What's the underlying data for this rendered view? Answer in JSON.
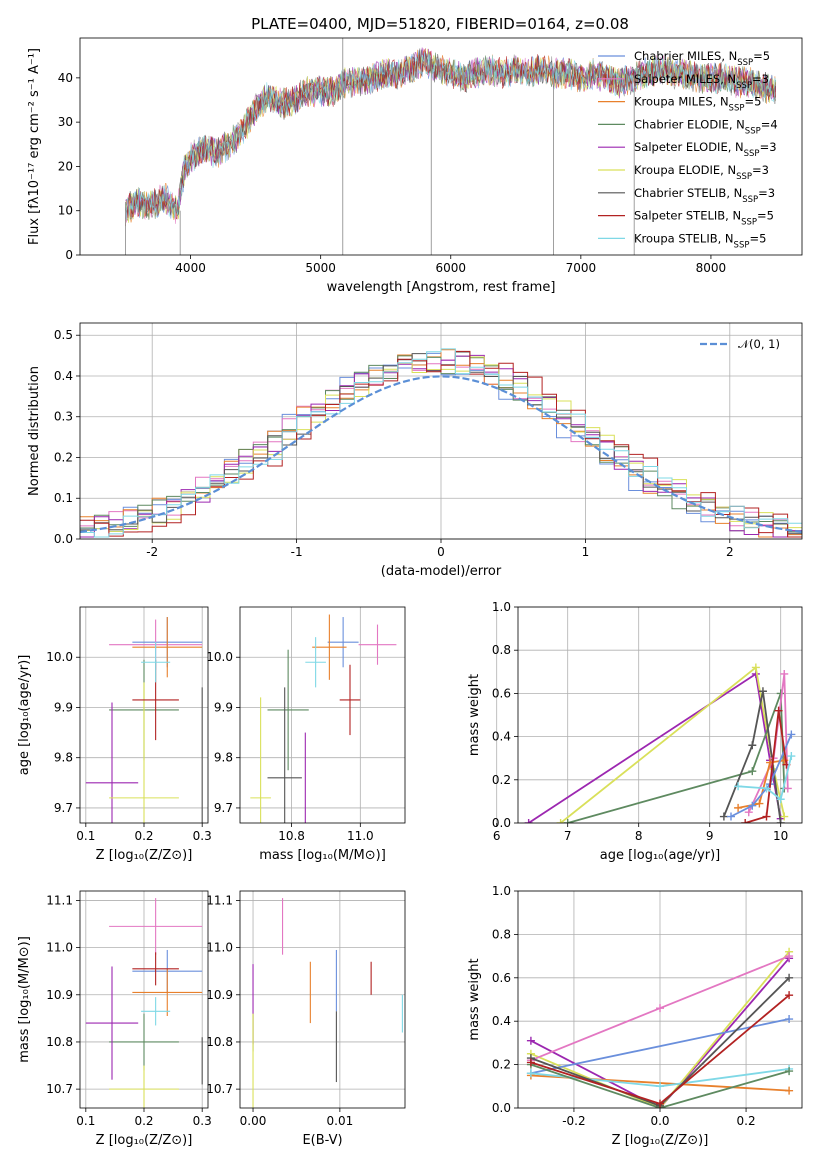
{
  "figure": {
    "title": "PLATE=0400, MJD=51820, FIBERID=0164, z=0.08"
  },
  "chart_data": [
    {
      "type": "line",
      "xlabel": "wavelength [Angstrom, rest frame]",
      "ylabel": "Flux [fλ10⁻¹⁷ erg cm⁻² s⁻¹ A⁻¹]",
      "xlim": [
        3150,
        8700
      ],
      "ylim": [
        0,
        49
      ],
      "xticks": [
        4000,
        5000,
        6000,
        7000,
        8000
      ],
      "yticks": [
        0,
        10,
        20,
        30,
        40
      ],
      "legend_position": "right",
      "grid": false,
      "spectrum_envelope": {
        "x": [
          3500,
          3600,
          3700,
          3800,
          3900,
          3950,
          4000,
          4100,
          4200,
          4300,
          4400,
          4500,
          4600,
          4700,
          4800,
          4900,
          5000,
          5100,
          5200,
          5300,
          5400,
          5500,
          5600,
          5700,
          5800,
          5900,
          6000,
          6100,
          6200,
          6300,
          6400,
          6500,
          6600,
          6700,
          6800,
          6900,
          7000,
          7100,
          7200,
          7300,
          7400,
          7500,
          7600,
          7700,
          7800,
          7900,
          8000,
          8100,
          8200,
          8300,
          8400,
          8500
        ],
        "y": [
          10,
          12,
          11,
          13,
          10,
          19,
          22,
          24,
          23,
          25,
          28,
          33,
          36,
          34,
          35,
          37,
          37,
          37,
          39,
          39,
          40,
          41,
          41,
          42,
          44,
          42,
          41,
          40,
          41,
          42,
          41,
          42,
          41,
          42,
          41,
          41,
          40,
          41,
          40,
          39,
          40,
          41,
          42,
          41,
          41,
          40,
          40,
          40,
          39,
          39,
          38,
          37
        ]
      },
      "series": [
        {
          "name": "Chabrier MILES, N",
          "suffix": "=5",
          "color": "#6a8fdc"
        },
        {
          "name": "Salpeter MILES, N",
          "suffix": "=3",
          "color": "#e377c2"
        },
        {
          "name": "Kroupa MILES, N",
          "suffix": "=5",
          "color": "#e8802c"
        },
        {
          "name": "Chabrier ELODIE, N",
          "suffix": "=4",
          "color": "#5e8a60"
        },
        {
          "name": "Salpeter ELODIE, N",
          "suffix": "=3",
          "color": "#9c27b0"
        },
        {
          "name": "Kroupa ELODIE, N",
          "suffix": "=3",
          "color": "#d9e05a"
        },
        {
          "name": "Chabrier STELIB, N",
          "suffix": "=3",
          "color": "#555555"
        },
        {
          "name": "Salpeter STELIB, N",
          "suffix": "=5",
          "color": "#b22222"
        },
        {
          "name": "Kroupa STELIB, N",
          "suffix": "=5",
          "color": "#7fd8e6"
        }
      ],
      "legend_subscript": "SSP",
      "data_line_color": "#888888"
    },
    {
      "type": "histogram",
      "xlabel": "(data-model)/error",
      "ylabel": "Normed distribution",
      "xlim": [
        -2.5,
        2.5
      ],
      "ylim": [
        0,
        0.53
      ],
      "xticks": [
        -2,
        -1,
        0,
        1,
        2
      ],
      "yticks": [
        0.0,
        0.1,
        0.2,
        0.3,
        0.4,
        0.5
      ],
      "grid": true,
      "bin_width": 0.1,
      "bin_start": -2.5,
      "reference_curve": {
        "name": "𝒩(0, 1)",
        "color": "#5b8fd6",
        "style": "dashed"
      },
      "histogram_colors": [
        "#6a8fdc",
        "#e377c2",
        "#e8802c",
        "#5e8a60",
        "#9c27b0",
        "#d9e05a",
        "#555555",
        "#b22222",
        "#7fd8e6"
      ]
    },
    {
      "type": "scatter",
      "xlabel": "Z [log₁₀(Z/Z⊙)]",
      "ylabel": "age  [log₁₀(age/yr)]",
      "xlim": [
        0.09,
        0.31
      ],
      "ylim": [
        9.67,
        10.1
      ],
      "xticks": [
        0.1,
        0.2,
        0.3
      ],
      "yticks": [
        9.7,
        9.8,
        9.9,
        10.0
      ],
      "grid": true,
      "points": [
        {
          "x": 0.24,
          "y": 10.03,
          "xerr": 0.06,
          "yerr": 0.05,
          "color": "#6a8fdc"
        },
        {
          "x": 0.22,
          "y": 10.025,
          "xerr": 0.08,
          "yerr": 0.05,
          "color": "#e377c2"
        },
        {
          "x": 0.24,
          "y": 10.02,
          "xerr": 0.06,
          "yerr": 0.06,
          "color": "#e8802c"
        },
        {
          "x": 0.2,
          "y": 9.895,
          "xerr": 0.06,
          "yerr": 0.1,
          "color": "#5e8a60"
        },
        {
          "x": 0.145,
          "y": 9.75,
          "xerr": 0.045,
          "yerr": 0.16,
          "color": "#9c27b0"
        },
        {
          "x": 0.2,
          "y": 9.72,
          "xerr": 0.06,
          "yerr": 0.23,
          "color": "#d9e05a"
        },
        {
          "x": 0.3,
          "y": 9.76,
          "xerr": 0.0,
          "yerr": 0.18,
          "color": "#555555"
        },
        {
          "x": 0.22,
          "y": 9.915,
          "xerr": 0.04,
          "yerr": 0.08,
          "color": "#b22222"
        },
        {
          "x": 0.22,
          "y": 9.99,
          "xerr": 0.025,
          "yerr": 0.04,
          "color": "#7fd8e6"
        }
      ]
    },
    {
      "type": "scatter",
      "xlabel": "mass [log₁₀(M/M⊙)]",
      "ylabel": "",
      "xlim": [
        10.65,
        11.13
      ],
      "ylim": [
        9.67,
        10.1
      ],
      "xticks": [
        10.8,
        11.0
      ],
      "yticks": [
        9.7,
        9.8,
        9.9,
        10.0
      ],
      "grid": true,
      "points": [
        {
          "x": 10.95,
          "y": 10.03,
          "xerr": 0.045,
          "yerr": 0.05,
          "color": "#6a8fdc"
        },
        {
          "x": 11.05,
          "y": 10.025,
          "xerr": 0.055,
          "yerr": 0.04,
          "color": "#e377c2"
        },
        {
          "x": 10.91,
          "y": 10.02,
          "xerr": 0.05,
          "yerr": 0.065,
          "color": "#e8802c"
        },
        {
          "x": 10.79,
          "y": 9.895,
          "xerr": 0.06,
          "yerr": 0.12,
          "color": "#5e8a60"
        },
        {
          "x": 10.84,
          "y": 9.75,
          "xerr": 0.0,
          "yerr": 0.1,
          "color": "#9c27b0"
        },
        {
          "x": 10.71,
          "y": 9.72,
          "xerr": 0.03,
          "yerr": 0.2,
          "color": "#d9e05a"
        },
        {
          "x": 10.78,
          "y": 9.76,
          "xerr": 0.05,
          "yerr": 0.18,
          "color": "#555555"
        },
        {
          "x": 10.97,
          "y": 9.915,
          "xerr": 0.03,
          "yerr": 0.07,
          "color": "#b22222"
        },
        {
          "x": 10.87,
          "y": 9.99,
          "xerr": 0.03,
          "yerr": 0.05,
          "color": "#7fd8e6"
        }
      ]
    },
    {
      "type": "line",
      "xlabel": "age  [log₁₀(age/yr)]",
      "ylabel": "mass weight",
      "xlim": [
        6.3,
        10.3
      ],
      "ylim": [
        0,
        1
      ],
      "xticks": [
        6,
        7,
        8,
        9,
        10
      ],
      "yticks": [
        0.0,
        0.2,
        0.4,
        0.6,
        0.8,
        1.0
      ],
      "grid": true,
      "series": [
        {
          "color": "#9c27b0",
          "x": [
            6.45,
            9.65,
            9.85,
            10.0
          ],
          "y": [
            0.0,
            0.69,
            0.29,
            0.02
          ]
        },
        {
          "color": "#d9e05a",
          "x": [
            6.9,
            9.65,
            9.9,
            10.05
          ],
          "y": [
            0.0,
            0.72,
            0.25,
            0.03
          ]
        },
        {
          "color": "#5e8a60",
          "x": [
            7.0,
            9.6,
            10.0,
            10.05
          ],
          "y": [
            0.0,
            0.24,
            0.6,
            0.16
          ]
        },
        {
          "color": "#555555",
          "x": [
            9.2,
            9.6,
            9.75,
            10.0
          ],
          "y": [
            0.03,
            0.36,
            0.61,
            0.0
          ]
        },
        {
          "color": "#e377c2",
          "x": [
            9.55,
            9.9,
            10.05,
            10.1
          ],
          "y": [
            0.05,
            0.3,
            0.69,
            0.16
          ]
        },
        {
          "color": "#e8802c",
          "x": [
            9.4,
            9.7,
            9.85,
            10.05
          ],
          "y": [
            0.07,
            0.09,
            0.28,
            0.29
          ]
        },
        {
          "color": "#6a8fdc",
          "x": [
            9.3,
            9.6,
            9.85,
            10.15
          ],
          "y": [
            0.03,
            0.08,
            0.18,
            0.41
          ]
        },
        {
          "color": "#b22222",
          "x": [
            9.5,
            9.8,
            9.97,
            10.08
          ],
          "y": [
            0.0,
            0.03,
            0.52,
            0.27
          ]
        },
        {
          "color": "#7fd8e6",
          "x": [
            9.4,
            9.8,
            10.0,
            10.15
          ],
          "y": [
            0.17,
            0.16,
            0.11,
            0.31
          ]
        }
      ]
    },
    {
      "type": "scatter",
      "xlabel": "Z [log₁₀(Z/Z⊙)]",
      "ylabel": "mass [log₁₀(M/M⊙)]",
      "xlim": [
        0.09,
        0.31
      ],
      "ylim": [
        10.66,
        11.12
      ],
      "xticks": [
        0.1,
        0.2,
        0.3
      ],
      "yticks": [
        10.7,
        10.8,
        10.9,
        11.0,
        11.1
      ],
      "grid": true,
      "points": [
        {
          "x": 0.24,
          "y": 10.95,
          "xerr": 0.06,
          "yerr": 0.045,
          "color": "#6a8fdc"
        },
        {
          "x": 0.22,
          "y": 11.045,
          "xerr": 0.08,
          "yerr": 0.06,
          "color": "#e377c2"
        },
        {
          "x": 0.24,
          "y": 10.905,
          "xerr": 0.06,
          "yerr": 0.05,
          "color": "#e8802c"
        },
        {
          "x": 0.2,
          "y": 10.8,
          "xerr": 0.06,
          "yerr": 0.06,
          "color": "#5e8a60"
        },
        {
          "x": 0.145,
          "y": 10.84,
          "xerr": 0.045,
          "yerr": 0.12,
          "color": "#9c27b0"
        },
        {
          "x": 0.2,
          "y": 10.7,
          "xerr": 0.06,
          "yerr": 0.05,
          "color": "#d9e05a"
        },
        {
          "x": 0.3,
          "y": 10.76,
          "xerr": 0.0,
          "yerr": 0.05,
          "color": "#555555"
        },
        {
          "x": 0.22,
          "y": 10.955,
          "xerr": 0.04,
          "yerr": 0.035,
          "color": "#b22222"
        },
        {
          "x": 0.22,
          "y": 10.865,
          "xerr": 0.025,
          "yerr": 0.03,
          "color": "#7fd8e6"
        }
      ]
    },
    {
      "type": "scatter",
      "xlabel": "E(B-V)",
      "ylabel": "",
      "xlim": [
        -0.0015,
        0.0175
      ],
      "ylim": [
        10.66,
        11.12
      ],
      "xticks": [
        0.0,
        0.01
      ],
      "yticks": [
        10.7,
        10.8,
        10.9,
        11.0,
        11.1
      ],
      "grid": true,
      "points": [
        {
          "x": 0.0096,
          "y": 10.93,
          "yerr": 0.065,
          "color": "#6a8fdc"
        },
        {
          "x": 0.0034,
          "y": 11.045,
          "yerr": 0.06,
          "color": "#e377c2"
        },
        {
          "x": 0.0066,
          "y": 10.905,
          "yerr": 0.065,
          "color": "#e8802c"
        },
        {
          "x": 0.0,
          "y": 10.82,
          "yerr": 0.04,
          "color": "#5e8a60"
        },
        {
          "x": 0.0,
          "y": 10.88,
          "yerr": 0.085,
          "color": "#9c27b0"
        },
        {
          "x": 0.0,
          "y": 10.76,
          "yerr": 0.1,
          "color": "#d9e05a"
        },
        {
          "x": 0.0096,
          "y": 10.79,
          "yerr": 0.075,
          "color": "#555555"
        },
        {
          "x": 0.0136,
          "y": 10.935,
          "yerr": 0.035,
          "color": "#b22222"
        },
        {
          "x": 0.0172,
          "y": 10.86,
          "yerr": 0.04,
          "color": "#7fd8e6"
        }
      ]
    },
    {
      "type": "line",
      "xlabel": "Z [log₁₀(Z/Z⊙)]",
      "ylabel": "mass weight",
      "xlim": [
        -0.33,
        0.33
      ],
      "ylim": [
        0,
        1
      ],
      "xticks": [
        -0.2,
        0.0,
        0.2
      ],
      "yticks": [
        0.0,
        0.2,
        0.4,
        0.6,
        0.8,
        1.0
      ],
      "grid": true,
      "series": [
        {
          "color": "#9c27b0",
          "x": [
            -0.3,
            0.0,
            0.3
          ],
          "y": [
            0.31,
            0.0,
            0.69
          ]
        },
        {
          "color": "#d9e05a",
          "x": [
            -0.3,
            0.0,
            0.3
          ],
          "y": [
            0.25,
            0.0,
            0.72
          ]
        },
        {
          "color": "#e377c2",
          "x": [
            -0.3,
            0.0,
            0.3
          ],
          "y": [
            0.22,
            0.46,
            0.7
          ]
        },
        {
          "color": "#6a8fdc",
          "x": [
            -0.3,
            0.3
          ],
          "y": [
            0.16,
            0.41
          ]
        },
        {
          "color": "#e8802c",
          "x": [
            -0.3,
            0.3
          ],
          "y": [
            0.15,
            0.08
          ]
        },
        {
          "color": "#7fd8e6",
          "x": [
            -0.3,
            0.0,
            0.3
          ],
          "y": [
            0.16,
            0.1,
            0.18
          ]
        },
        {
          "color": "#5e8a60",
          "x": [
            -0.3,
            0.0,
            0.3
          ],
          "y": [
            0.2,
            0.0,
            0.17
          ]
        },
        {
          "color": "#555555",
          "x": [
            -0.3,
            0.0,
            0.3
          ],
          "y": [
            0.23,
            0.01,
            0.6
          ]
        },
        {
          "color": "#b22222",
          "x": [
            -0.3,
            0.0,
            0.3
          ],
          "y": [
            0.21,
            0.02,
            0.52
          ]
        }
      ]
    }
  ]
}
